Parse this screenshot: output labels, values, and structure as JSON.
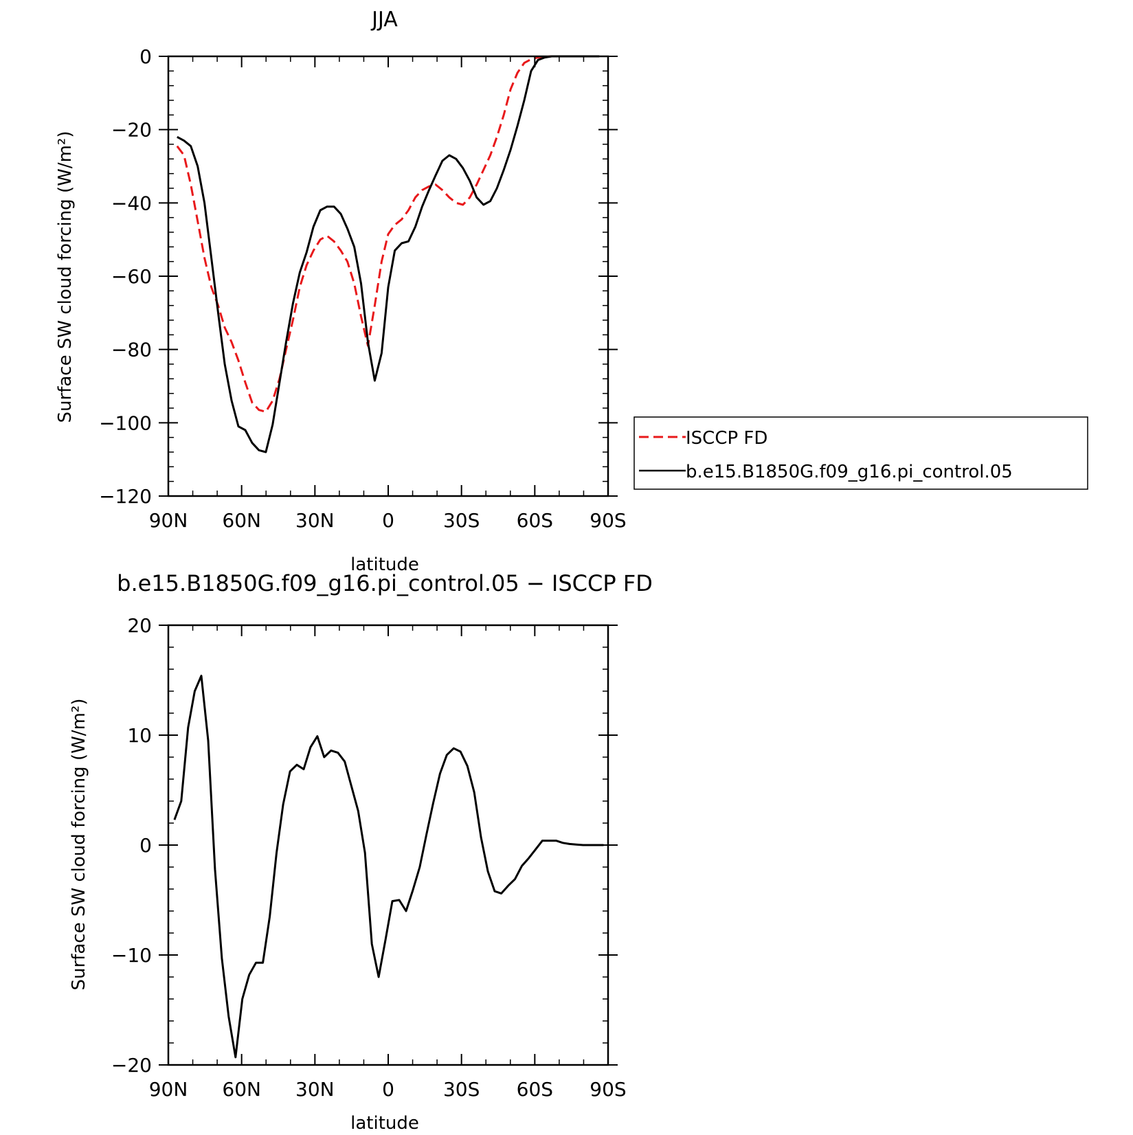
{
  "chart_data": [
    {
      "type": "line",
      "title": "JJA",
      "xlabel": "latitude",
      "ylabel": "Surface SW cloud forcing (W/m²)",
      "xlim": [
        90,
        -90
      ],
      "ylim": [
        -120,
        0
      ],
      "x_ticks": [
        90,
        60,
        30,
        0,
        -30,
        -60,
        -90
      ],
      "x_tick_labels": [
        "90N",
        "60N",
        "30N",
        "0",
        "30S",
        "60S",
        "90S"
      ],
      "y_ticks": [
        0,
        -20,
        -40,
        -60,
        -80,
        -100,
        -120
      ],
      "y_tick_labels": [
        "0",
        "−20",
        "−40",
        "−60",
        "−80",
        "−100",
        "−120"
      ],
      "legend_position": "right",
      "series": [
        {
          "name": "ISCCP FD",
          "color": "#e8191b",
          "dash": "dashed",
          "x": [
            86.4,
            83.6,
            80.8,
            78.0,
            75.2,
            72.4,
            69.6,
            66.9,
            64.1,
            61.3,
            58.5,
            55.7,
            52.9,
            50.1,
            47.3,
            44.5,
            41.8,
            39.0,
            36.2,
            33.4,
            30.6,
            27.8,
            25.0,
            22.2,
            19.4,
            16.7,
            13.9,
            11.1,
            8.3,
            5.5,
            2.7,
            0.0,
            -2.7,
            -5.5,
            -8.3,
            -11.1,
            -13.9,
            -16.7,
            -19.4,
            -22.2,
            -25.0,
            -27.8,
            -30.6,
            -33.4,
            -36.2,
            -39.0,
            -41.8,
            -44.5,
            -47.3,
            -50.1,
            -52.9,
            -55.7,
            -58.5,
            -61.3,
            -64.1,
            -66.9,
            -69.6,
            -72.4,
            -75.2,
            -78.0,
            -80.8,
            -83.6,
            -86.4
          ],
          "y": [
            -24.5,
            -27,
            -35,
            -45,
            -55,
            -63,
            -68,
            -74,
            -78,
            -83,
            -89,
            -94.5,
            -96.5,
            -97,
            -94,
            -88,
            -80,
            -72,
            -63,
            -57,
            -53,
            -50,
            -49,
            -50.5,
            -53,
            -56,
            -62,
            -71,
            -79,
            -68,
            -56,
            -48.5,
            -46,
            -44.5,
            -42,
            -38.5,
            -36.5,
            -35.5,
            -35,
            -36.5,
            -38.5,
            -40,
            -40.5,
            -38.5,
            -35,
            -31,
            -27,
            -22,
            -16,
            -9,
            -4.5,
            -1.8,
            -0.8,
            -0.3,
            -0.1,
            0,
            0,
            0,
            0,
            0,
            0,
            0,
            0
          ]
        },
        {
          "name": "b.e15.B1850G.f09_g16.pi_control.05",
          "color": "#000000",
          "dash": "solid",
          "x": [
            86.4,
            83.6,
            80.8,
            78.0,
            75.2,
            72.4,
            69.6,
            66.9,
            64.1,
            61.3,
            58.5,
            55.7,
            52.9,
            50.1,
            47.3,
            44.5,
            41.8,
            39.0,
            36.2,
            33.4,
            30.6,
            27.8,
            25.0,
            22.2,
            19.4,
            16.7,
            13.9,
            11.1,
            8.3,
            5.5,
            2.7,
            0.0,
            -2.7,
            -5.5,
            -8.3,
            -11.1,
            -13.9,
            -16.7,
            -19.4,
            -22.2,
            -25.0,
            -27.8,
            -30.6,
            -33.4,
            -36.2,
            -39.0,
            -41.8,
            -44.5,
            -47.3,
            -50.1,
            -52.9,
            -55.7,
            -58.5,
            -61.3,
            -64.1,
            -66.9,
            -69.6,
            -72.4,
            -75.2,
            -78.0,
            -80.8,
            -83.6,
            -86.4
          ],
          "y": [
            -22,
            -23,
            -24.5,
            -30,
            -40,
            -55,
            -70,
            -84,
            -94,
            -101,
            -102,
            -105.5,
            -107.5,
            -108,
            -100.5,
            -89,
            -78,
            -67.5,
            -59,
            -53.5,
            -46.5,
            -42,
            -41,
            -41,
            -43,
            -47,
            -52,
            -62,
            -78,
            -88.5,
            -81,
            -63,
            -53,
            -51,
            -50.5,
            -46.5,
            -41,
            -36.5,
            -32.5,
            -28.5,
            -27,
            -28,
            -30.5,
            -34,
            -38.5,
            -40.5,
            -39.5,
            -36,
            -31,
            -25.5,
            -19,
            -12,
            -4,
            -1,
            -0.3,
            0,
            0,
            0,
            0,
            0,
            0,
            0,
            0
          ]
        }
      ]
    },
    {
      "type": "line",
      "title": "b.e15.B1850G.f09_g16.pi_control.05 − ISCCP FD",
      "xlabel": "latitude",
      "ylabel": "Surface SW cloud forcing (W/m²)",
      "xlim": [
        90,
        -90
      ],
      "ylim": [
        -20,
        20
      ],
      "x_ticks": [
        90,
        60,
        30,
        0,
        -30,
        -60,
        -90
      ],
      "x_tick_labels": [
        "90N",
        "60N",
        "30N",
        "0",
        "30S",
        "60S",
        "90S"
      ],
      "y_ticks": [
        20,
        10,
        0,
        -10,
        -20
      ],
      "y_tick_labels": [
        "20",
        "10",
        "0",
        "−10",
        "−20"
      ],
      "series": [
        {
          "color": "#000000",
          "dash": "solid",
          "x": [
            87.5,
            84.7,
            81.9,
            79.2,
            76.5,
            73.7,
            70.9,
            68.1,
            65.3,
            62.5,
            59.7,
            56.9,
            54.1,
            51.3,
            48.5,
            45.7,
            43.0,
            40.2,
            37.4,
            34.6,
            31.8,
            29.0,
            26.2,
            23.4,
            20.6,
            17.8,
            15.0,
            12.3,
            9.5,
            6.7,
            3.9,
            1.1,
            -1.7,
            -4.5,
            -7.3,
            -10.1,
            -12.9,
            -15.7,
            -18.4,
            -21.2,
            -24.0,
            -26.8,
            -29.6,
            -32.4,
            -35.2,
            -38.0,
            -40.8,
            -43.6,
            -46.3,
            -49.1,
            -51.9,
            -54.7,
            -57.5,
            -60.3,
            -63.1,
            -65.9,
            -68.7,
            -71.5,
            -74.2,
            -77.0,
            -79.8,
            -82.6,
            -85.4,
            -88.2
          ],
          "y": [
            2.3,
            4,
            10.7,
            14,
            15.4,
            9.5,
            -2.2,
            -10.3,
            -15.6,
            -19.3,
            -14,
            -11.8,
            -10.7,
            -10.7,
            -6.5,
            -0.7,
            3.7,
            6.7,
            7.3,
            6.9,
            8.9,
            9.9,
            8,
            8.6,
            8.4,
            7.6,
            5.3,
            3.1,
            -0.7,
            -9,
            -12,
            -8.6,
            -5.1,
            -5,
            -6,
            -4.1,
            -2,
            1,
            3.8,
            6.5,
            8.2,
            8.8,
            8.5,
            7.2,
            4.8,
            0.7,
            -2.4,
            -4.2,
            -4.4,
            -3.7,
            -3.1,
            -1.9,
            -1.2,
            -0.4,
            0.4,
            0.4,
            0.4,
            0.2,
            0.1,
            0.05,
            0,
            0,
            0,
            0
          ]
        }
      ]
    }
  ],
  "legend": {
    "items": [
      "ISCCP FD",
      "b.e15.B1850G.f09_g16.pi_control.05"
    ]
  }
}
